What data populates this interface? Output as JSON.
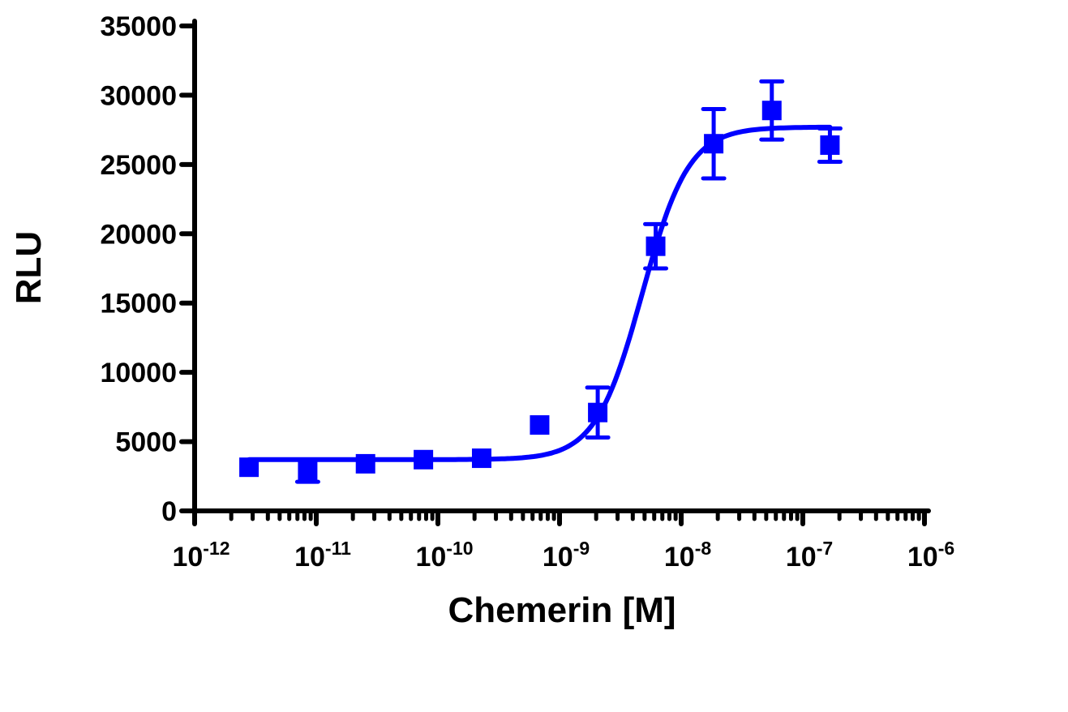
{
  "chart_data": {
    "type": "scatter",
    "title": "",
    "xlabel": "Chemerin [M]",
    "ylabel": "RLU",
    "x_scale": "log",
    "xlim": [
      1e-12,
      1e-06
    ],
    "ylim": [
      0,
      35000
    ],
    "x_tick_labels": [
      {
        "base": "10",
        "exp": "-12"
      },
      {
        "base": "10",
        "exp": "-11"
      },
      {
        "base": "10",
        "exp": "-10"
      },
      {
        "base": "10",
        "exp": "-9"
      },
      {
        "base": "10",
        "exp": "-8"
      },
      {
        "base": "10",
        "exp": "-7"
      },
      {
        "base": "10",
        "exp": "-6"
      }
    ],
    "y_ticks": [
      0,
      5000,
      10000,
      15000,
      20000,
      25000,
      30000,
      35000
    ],
    "y_tick_labels": [
      "0",
      "5000",
      "10000",
      "15000",
      "20000",
      "25000",
      "30000",
      "35000"
    ],
    "grid": false,
    "color": "#0000ff",
    "marker": "square",
    "series": [
      {
        "x": [
          2.8e-12,
          8.5e-12,
          2.54e-11,
          7.6e-11,
          2.29e-10,
          6.86e-10,
          2.06e-09,
          6.17e-09,
          1.85e-08,
          5.56e-08,
          1.67e-07
        ],
        "y": [
          3150,
          2900,
          3400,
          3700,
          3800,
          6200,
          7100,
          19100,
          26500,
          28900,
          26400
        ],
        "error": [
          null,
          800,
          null,
          null,
          null,
          null,
          1800,
          1600,
          2500,
          2100,
          1200
        ]
      }
    ],
    "fit": {
      "model": "sigmoidal dose-response",
      "bottom": 3700,
      "top": 27700,
      "log_ec50": -8.32,
      "hill_slope": 2.27
    }
  }
}
